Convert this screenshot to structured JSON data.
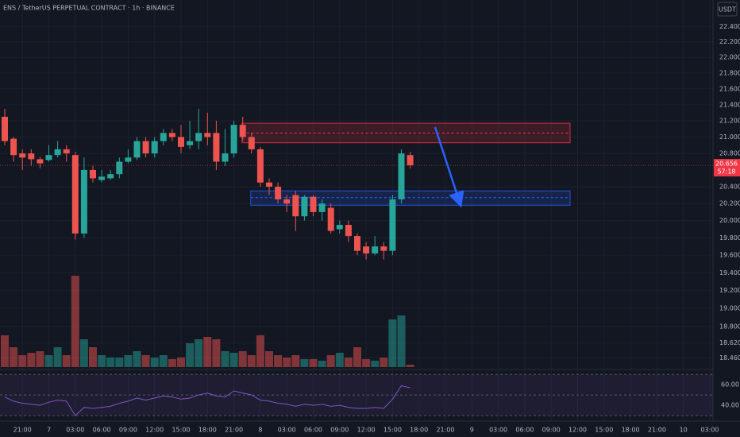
{
  "chart_data": {
    "type": "candlestick",
    "title": "ENS / TetherUS PERPETUAL CONTRACT · 1h · BINANCE",
    "currency": "USDT",
    "log_scale": true,
    "ylim": [
      18.36,
      22.75
    ],
    "yticks": [
      {
        "value": 22.4,
        "label": "22.400"
      },
      {
        "value": 22.2,
        "label": "22.200"
      },
      {
        "value": 22.0,
        "label": "22.000"
      },
      {
        "value": 21.8,
        "label": "21.800"
      },
      {
        "value": 21.6,
        "label": "21.600"
      },
      {
        "value": 21.4,
        "label": "21.400"
      },
      {
        "value": 21.2,
        "label": "21.200"
      },
      {
        "value": 21.0,
        "label": "21.000"
      },
      {
        "value": 20.8,
        "label": "20.800"
      },
      {
        "value": 20.4,
        "label": "20.400"
      },
      {
        "value": 20.2,
        "label": "20.200"
      },
      {
        "value": 20.0,
        "label": "20.000"
      },
      {
        "value": 19.8,
        "label": "19.800"
      },
      {
        "value": 19.6,
        "label": "19.600"
      },
      {
        "value": 19.4,
        "label": "19.400"
      },
      {
        "value": 19.2,
        "label": "19.200"
      },
      {
        "value": 19.0,
        "label": "19.000"
      },
      {
        "value": 18.8,
        "label": "18.800"
      },
      {
        "value": 18.62,
        "label": "18.620"
      },
      {
        "value": 18.46,
        "label": "18.460"
      }
    ],
    "time_labels": [
      "21:00",
      "7",
      "03:00",
      "06:00",
      "09:00",
      "12:00",
      "15:00",
      "18:00",
      "21:00",
      "8",
      "03:00",
      "06:00",
      "09:00",
      "12:00",
      "15:00",
      "18:00",
      "21:00",
      "9",
      "03:00",
      "06:00",
      "09:00",
      "12:00",
      "15:00",
      "18:00",
      "21:00",
      "10",
      "03:00"
    ],
    "up_color": "#26a69a",
    "down_color": "#ef5350",
    "open": [
      21.25,
      20.98,
      20.8,
      20.8,
      20.73,
      20.72,
      20.78,
      20.85,
      20.78,
      19.85,
      20.6,
      20.48,
      20.5,
      20.55,
      20.7,
      20.75,
      20.95,
      20.8,
      20.95,
      21.05,
      21.0,
      20.9,
      20.95,
      21.05,
      21.05,
      20.7,
      20.8,
      21.15,
      21.0,
      20.85,
      20.45,
      20.4,
      20.25,
      20.3,
      20.05,
      20.28,
      20.1,
      20.15,
      19.9,
      19.95,
      19.82,
      19.7,
      19.62,
      19.7,
      19.65,
      20.25,
      20.78
    ],
    "high": [
      21.35,
      21.0,
      20.85,
      20.85,
      20.76,
      20.9,
      20.95,
      20.9,
      20.82,
      20.75,
      20.65,
      20.6,
      20.6,
      20.75,
      20.85,
      21.0,
      21.0,
      21.0,
      21.1,
      21.1,
      21.15,
      21.2,
      21.35,
      21.3,
      21.2,
      21.1,
      21.2,
      21.25,
      21.05,
      20.88,
      20.5,
      20.45,
      20.3,
      20.35,
      20.3,
      20.3,
      20.25,
      20.2,
      20.0,
      20.0,
      19.85,
      19.75,
      19.82,
      19.75,
      20.3,
      20.85,
      20.82
    ],
    "low": [
      20.9,
      20.7,
      20.6,
      20.65,
      20.62,
      20.7,
      20.75,
      20.7,
      19.78,
      19.8,
      20.45,
      20.45,
      20.48,
      20.5,
      20.68,
      20.72,
      20.75,
      20.75,
      20.9,
      20.95,
      20.8,
      20.85,
      20.85,
      20.9,
      20.6,
      20.65,
      20.75,
      20.95,
      20.8,
      20.4,
      20.3,
      20.2,
      20.1,
      19.88,
      20.0,
      20.05,
      20.0,
      19.85,
      19.85,
      19.75,
      19.6,
      19.55,
      19.6,
      19.55,
      19.6,
      20.2,
      20.62
    ],
    "close": [
      20.95,
      20.78,
      20.75,
      20.73,
      20.68,
      20.78,
      20.85,
      20.8,
      19.85,
      20.6,
      20.5,
      20.52,
      20.55,
      20.7,
      20.75,
      20.95,
      20.8,
      20.95,
      21.05,
      21.0,
      20.88,
      20.95,
      21.05,
      21.0,
      20.7,
      20.8,
      21.15,
      21.0,
      20.85,
      20.45,
      20.4,
      20.25,
      20.2,
      20.05,
      20.28,
      20.1,
      20.2,
      19.88,
      19.95,
      19.82,
      19.65,
      19.62,
      19.7,
      19.65,
      20.25,
      20.8,
      20.656
    ],
    "volume": [
      40,
      25,
      15,
      18,
      20,
      15,
      25,
      15,
      115,
      35,
      25,
      15,
      12,
      12,
      15,
      20,
      15,
      12,
      15,
      10,
      12,
      30,
      35,
      38,
      35,
      20,
      18,
      20,
      15,
      40,
      20,
      15,
      12,
      15,
      10,
      10,
      8,
      15,
      18,
      12,
      25,
      10,
      8,
      12,
      60,
      65,
      3
    ],
    "last_price": {
      "value": 20.656,
      "label": "20.656"
    },
    "countdown": "57:18",
    "zones": [
      {
        "top": 21.17,
        "bottom": 20.93,
        "mid": 21.05,
        "color": "#f23645"
      },
      {
        "top": 20.35,
        "bottom": 20.18,
        "mid": 20.27,
        "color": "#2962ff"
      }
    ],
    "rsi": {
      "values": [
        48,
        44,
        42,
        41,
        40,
        43,
        45,
        44,
        30,
        38,
        37,
        38,
        39,
        42,
        44,
        47,
        45,
        47,
        49,
        48,
        46,
        47,
        50,
        52,
        49,
        48,
        54,
        52,
        50,
        45,
        44,
        42,
        41,
        39,
        41,
        40,
        41,
        39,
        40,
        38,
        37,
        37,
        38,
        37,
        46,
        59,
        57
      ],
      "color": "#7e57c2",
      "ylim": [
        27,
        74
      ],
      "yticks": [
        {
          "value": 60,
          "label": "60.00"
        },
        {
          "value": 40,
          "label": "40.00"
        }
      ],
      "bands": [
        70,
        50,
        30
      ]
    }
  }
}
